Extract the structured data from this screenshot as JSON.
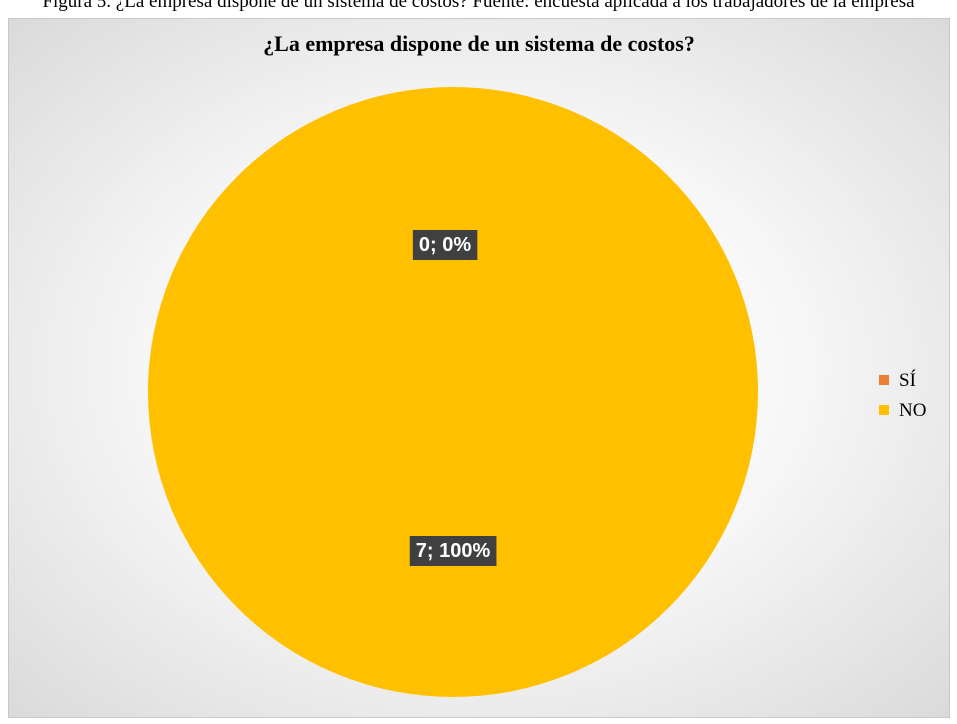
{
  "page": {
    "caption": "Figura 5. ¿La empresa dispone de un sistema de costos? Fuente: encuesta aplicada a los trabajadores de la empresa"
  },
  "chart_data": {
    "type": "pie",
    "title": "¿La empresa dispone de un sistema de costos?",
    "categories": [
      "SÍ",
      "NO"
    ],
    "values": [
      0,
      7
    ],
    "percentages": [
      "0%",
      "100%"
    ],
    "data_labels": [
      "0; 0%",
      "7; 100%"
    ],
    "colors": [
      "#ED7D31",
      "#FFC000"
    ],
    "legend_position": "right"
  }
}
